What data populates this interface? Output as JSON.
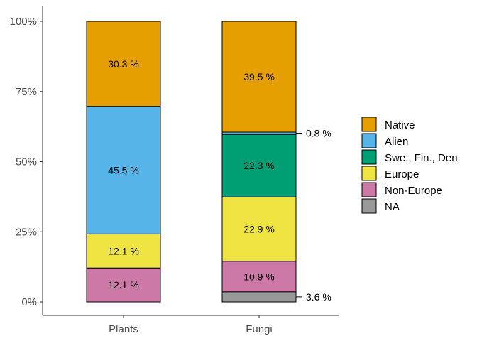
{
  "chart_data": {
    "type": "bar",
    "stacked": true,
    "categories": [
      "Plants",
      "Fungi"
    ],
    "yaxis": {
      "min": 0,
      "max": 100,
      "ticks": [
        0,
        25,
        50,
        75,
        100
      ],
      "tick_labels": [
        "0%",
        "25%",
        "50%",
        "75%",
        "100%"
      ]
    },
    "grid": false,
    "legend_position": "right",
    "series": [
      {
        "name": "NA",
        "color": "#999999",
        "values": [
          0,
          3.6
        ],
        "labels": [
          "",
          ""
        ]
      },
      {
        "name": "Non-Europe",
        "color": "#CC79A7",
        "values": [
          12.1,
          10.9
        ],
        "labels": [
          "12.1 %",
          "10.9 %"
        ]
      },
      {
        "name": "Europe",
        "color": "#F0E442",
        "values": [
          12.1,
          22.9
        ],
        "labels": [
          "12.1 %",
          "22.9 %"
        ]
      },
      {
        "name": "Swe., Fin., Den.",
        "color": "#009E73",
        "values": [
          0,
          22.3
        ],
        "labels": [
          "",
          "22.3 %"
        ]
      },
      {
        "name": "Alien",
        "color": "#56B4E9",
        "values": [
          45.5,
          0.8
        ],
        "labels": [
          "45.5 %",
          ""
        ]
      },
      {
        "name": "Native",
        "color": "#E69F00",
        "values": [
          30.3,
          39.5
        ],
        "labels": [
          "30.3 %",
          "39.5 %"
        ]
      }
    ],
    "callouts": [
      {
        "category": "Fungi",
        "series": "Alien",
        "text": "0.8 %"
      },
      {
        "category": "Fungi",
        "series": "NA",
        "text": "3.6 %"
      }
    ],
    "legend_order": [
      "Native",
      "Alien",
      "Swe., Fin., Den.",
      "Europe",
      "Non-Europe",
      "NA"
    ]
  }
}
